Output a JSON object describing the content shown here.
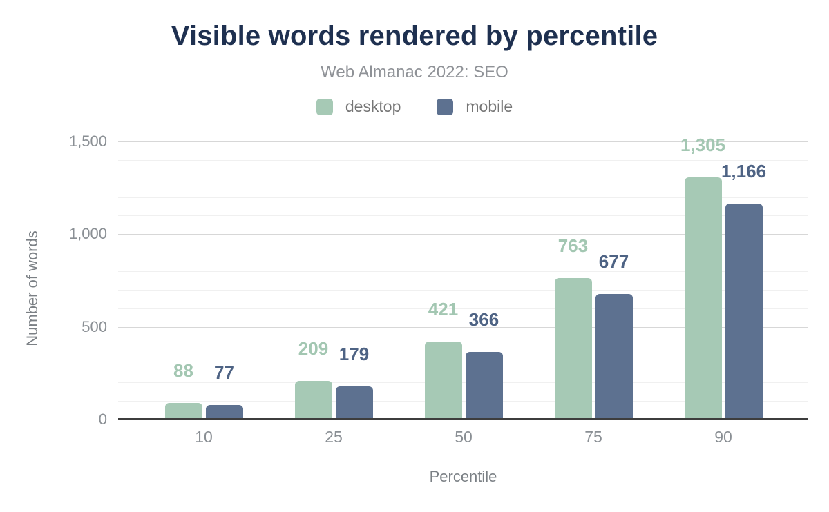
{
  "header": {
    "title": "Visible words rendered by percentile",
    "subtitle": "Web Almanac 2022: SEO"
  },
  "chart_data": {
    "type": "bar",
    "title": "Visible words rendered by percentile",
    "subtitle": "Web Almanac 2022: SEO",
    "categories": [
      "10",
      "25",
      "50",
      "75",
      "90"
    ],
    "series": [
      {
        "name": "desktop",
        "values": [
          88,
          209,
          421,
          763,
          1305
        ],
        "value_labels": [
          "88",
          "209",
          "421",
          "763",
          "1,305"
        ],
        "bar_color": "#a6c9b5",
        "label_color": "#a3c7b2"
      },
      {
        "name": "mobile",
        "values": [
          77,
          179,
          366,
          677,
          1166
        ],
        "value_labels": [
          "77",
          "179",
          "366",
          "677",
          "1,166"
        ],
        "bar_color": "#5d7190",
        "label_color": "#4e6384"
      }
    ],
    "xlabel": "Percentile",
    "ylabel": "Number of words",
    "ylim": [
      0,
      1500
    ],
    "yticks": [
      {
        "value": 0,
        "label": "0"
      },
      {
        "value": 500,
        "label": "500"
      },
      {
        "value": 1000,
        "label": "1,000"
      },
      {
        "value": 1500,
        "label": "1,500"
      }
    ],
    "minor_grid_step": 100,
    "grid": true,
    "legend_position": "top"
  },
  "style": {
    "title_color": "#1e3050",
    "subtitle_color": "#8f9297",
    "legend_text_color": "#757575",
    "tick_label_color": "#8a8f94",
    "axis_title_color": "#7b8085",
    "major_grid_color": "#d7d7d7",
    "minor_grid_color": "#f0f0f0",
    "baseline_color": "#3d3d3d",
    "background": "#ffffff"
  }
}
